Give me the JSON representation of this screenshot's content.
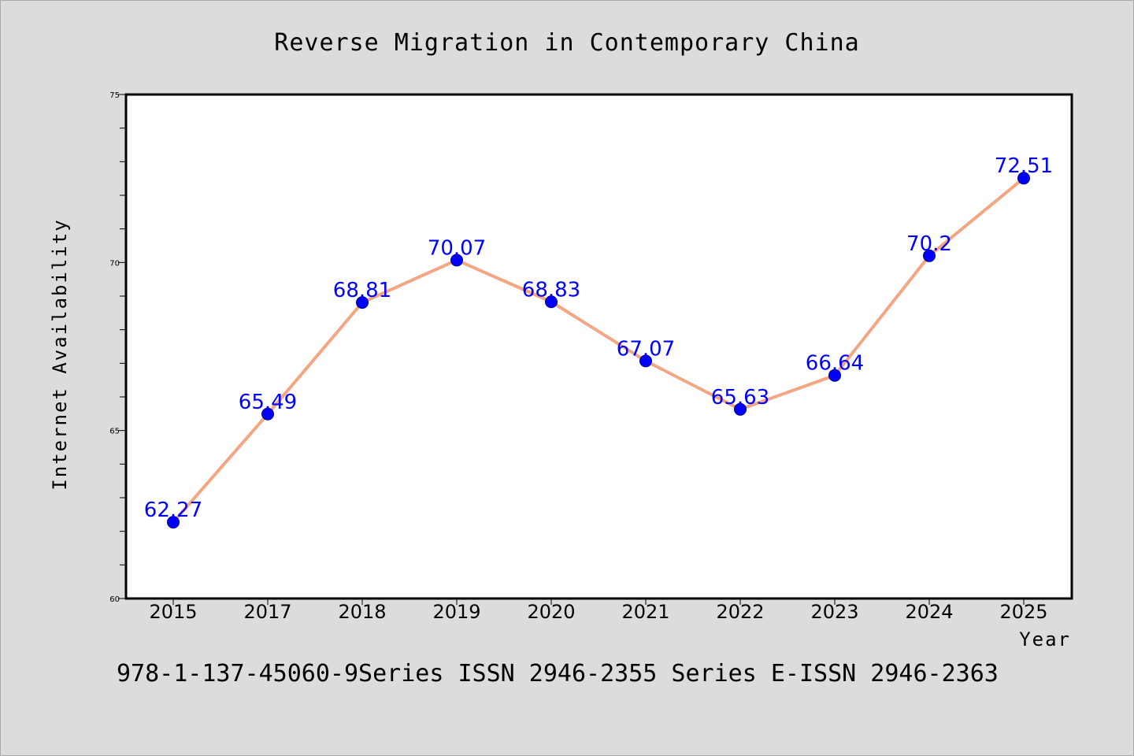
{
  "chart_data": {
    "type": "line",
    "title": "Reverse Migration in Contemporary China",
    "xlabel": "Year",
    "ylabel": "Internet Availability",
    "categories": [
      "2015",
      "2017",
      "2018",
      "2019",
      "2020",
      "2021",
      "2022",
      "2023",
      "2024",
      "2025"
    ],
    "series": [
      {
        "values": [
          62.27,
          65.49,
          68.81,
          70.07,
          68.83,
          67.07,
          65.63,
          66.64,
          70.2,
          72.51
        ],
        "labels": [
          "62.27",
          "65.49",
          "68.81",
          "70.07",
          "68.83",
          "67.07",
          "65.63",
          "66.64",
          "70.2",
          "72.51"
        ],
        "line_color": "#f4a582",
        "marker_color": "#0000ff",
        "label_color": "#0000ff"
      }
    ],
    "ylim": [
      60,
      75
    ],
    "yticks": [
      "60",
      "65",
      "70",
      "75"
    ],
    "grid": false,
    "legend": false
  },
  "footer": "978-1-137-45060-9Series ISSN 2946-2355 Series E-ISSN 2946-2363",
  "colors": {
    "background": "#dcdcdc",
    "plot_area": "#ffffff"
  }
}
